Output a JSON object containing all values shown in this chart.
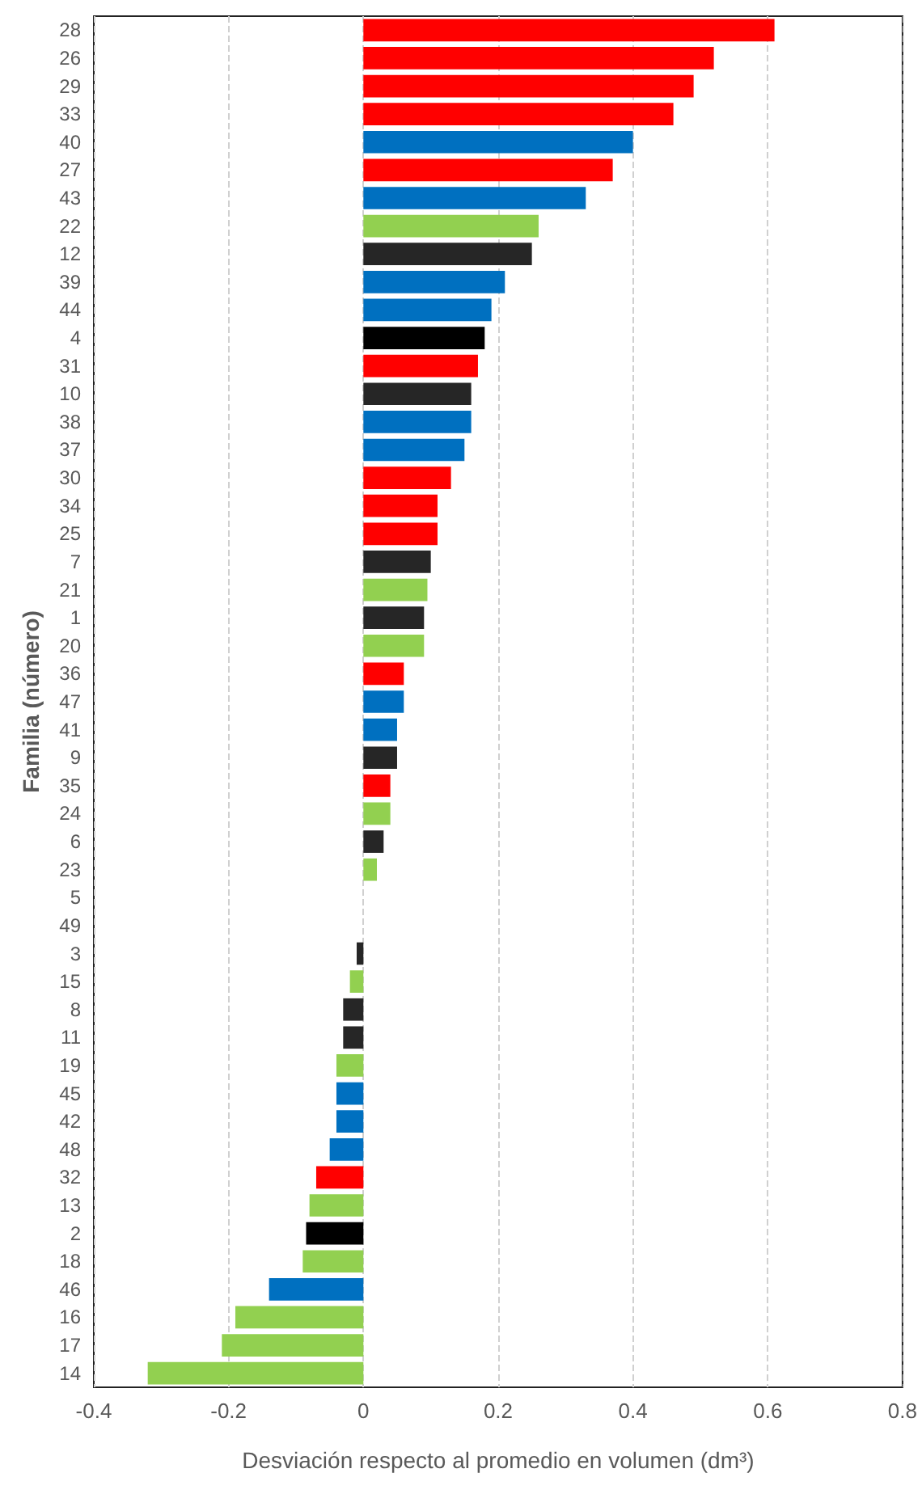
{
  "chart_data": {
    "type": "bar",
    "orientation": "horizontal",
    "xlabel": "Desviación respecto al promedio en volumen (dm³)",
    "ylabel": "Familia (número)",
    "categories": [
      "28",
      "26",
      "29",
      "33",
      "40",
      "27",
      "43",
      "22",
      "12",
      "39",
      "44",
      "4",
      "31",
      "10",
      "38",
      "37",
      "30",
      "34",
      "25",
      "7",
      "21",
      "1",
      "20",
      "36",
      "47",
      "41",
      "9",
      "35",
      "24",
      "6",
      "23",
      "5",
      "49",
      "3",
      "15",
      "8",
      "11",
      "19",
      "45",
      "42",
      "48",
      "32",
      "13",
      "2",
      "18",
      "46",
      "16",
      "17",
      "14"
    ],
    "values": [
      0.61,
      0.52,
      0.49,
      0.46,
      0.4,
      0.37,
      0.33,
      0.26,
      0.25,
      0.21,
      0.19,
      0.18,
      0.17,
      0.16,
      0.16,
      0.15,
      0.13,
      0.11,
      0.11,
      0.1,
      0.095,
      0.09,
      0.09,
      0.06,
      0.06,
      0.05,
      0.05,
      0.04,
      0.04,
      0.03,
      0.02,
      0,
      0,
      -0.01,
      -0.02,
      -0.03,
      -0.03,
      -0.04,
      -0.04,
      -0.04,
      -0.05,
      -0.07,
      -0.08,
      -0.085,
      -0.09,
      -0.14,
      -0.19,
      -0.21,
      -0.32
    ],
    "colors": [
      "#ff0000",
      "#ff0000",
      "#ff0000",
      "#ff0000",
      "#0070c0",
      "#ff0000",
      "#0070c0",
      "#92d050",
      "#262626",
      "#0070c0",
      "#0070c0",
      "#000000",
      "#ff0000",
      "#262626",
      "#0070c0",
      "#0070c0",
      "#ff0000",
      "#ff0000",
      "#ff0000",
      "#262626",
      "#92d050",
      "#262626",
      "#92d050",
      "#ff0000",
      "#0070c0",
      "#0070c0",
      "#262626",
      "#ff0000",
      "#92d050",
      "#262626",
      "#92d050",
      "#92d050",
      "#92d050",
      "#262626",
      "#92d050",
      "#262626",
      "#262626",
      "#92d050",
      "#0070c0",
      "#0070c0",
      "#0070c0",
      "#ff0000",
      "#92d050",
      "#000000",
      "#92d050",
      "#0070c0",
      "#92d050",
      "#92d050",
      "#92d050"
    ],
    "xlim": [
      -0.4,
      0.8
    ],
    "xticks": [
      -0.4,
      -0.2,
      0,
      0.2,
      0.4,
      0.6,
      0.8
    ],
    "grid": "x"
  }
}
